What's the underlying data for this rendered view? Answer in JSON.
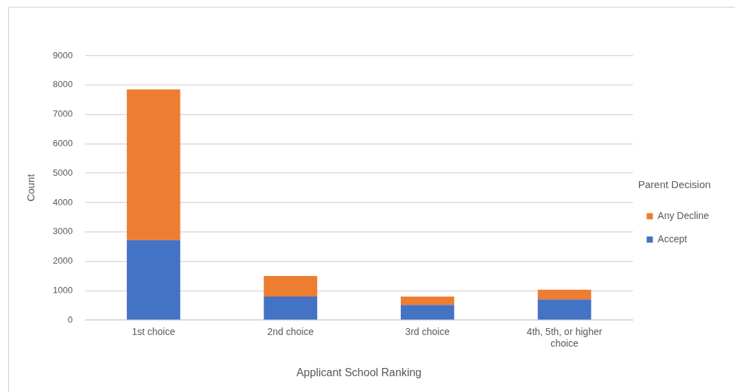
{
  "chart_data": {
    "type": "bar",
    "stacked": true,
    "xlabel": "Applicant School Ranking",
    "ylabel": "Count",
    "legend_title": "Parent Decision",
    "legend": "right",
    "categories": [
      "1st choice",
      "2nd choice",
      "3rd choice",
      "4th, 5th, or higher choice"
    ],
    "series": [
      {
        "name": "Accept",
        "color": "#4472c4",
        "values": [
          2720,
          800,
          510,
          700
        ]
      },
      {
        "name": "Any Decline",
        "color": "#ed7d31",
        "values": [
          5130,
          700,
          290,
          330
        ]
      }
    ],
    "ylim": [
      0,
      9000
    ],
    "yticks": [
      0,
      1000,
      2000,
      3000,
      4000,
      5000,
      6000,
      7000,
      8000,
      9000
    ],
    "grid": "y"
  }
}
